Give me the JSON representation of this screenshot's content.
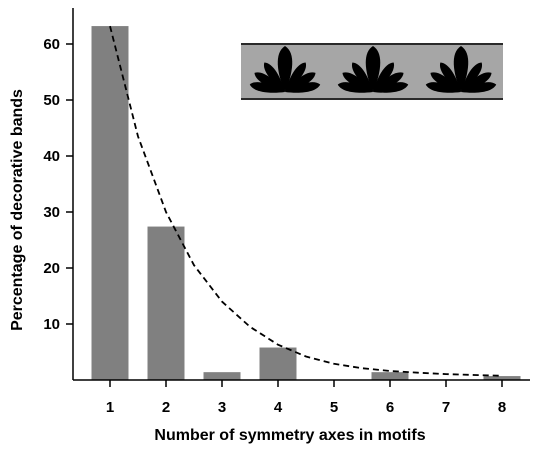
{
  "chart_data": {
    "type": "bar",
    "xlabel": "Number of symmetry axes in motifs",
    "ylabel": "Percentage of decorative bands",
    "categories": [
      "1",
      "2",
      "3",
      "4",
      "5",
      "6",
      "7",
      "8"
    ],
    "values": [
      63.2,
      27.4,
      1.4,
      5.8,
      0.0,
      1.4,
      0.0,
      0.7
    ],
    "yticks": [
      "10",
      "20",
      "30",
      "40",
      "50",
      "60"
    ],
    "ylim": [
      0,
      65
    ],
    "grid": false,
    "bar_color": "#808080",
    "fit_curve": {
      "style": "dashed",
      "points": [
        [
          1.0,
          63.2
        ],
        [
          1.5,
          43.5
        ],
        [
          2.0,
          30.0
        ],
        [
          2.5,
          20.5
        ],
        [
          3.0,
          14.0
        ],
        [
          3.5,
          9.5
        ],
        [
          4.0,
          6.3
        ],
        [
          4.5,
          4.2
        ],
        [
          5.0,
          2.9
        ],
        [
          5.5,
          2.1
        ],
        [
          6.0,
          1.6
        ],
        [
          6.5,
          1.3
        ],
        [
          7.0,
          1.05
        ],
        [
          7.5,
          0.9
        ],
        [
          8.0,
          0.75
        ]
      ]
    },
    "inset_image": "decorative band with three fan-shaped motifs"
  },
  "colors": {
    "bars": "#808080",
    "inset_background": "#a6a6a6",
    "motif": "#000000"
  }
}
